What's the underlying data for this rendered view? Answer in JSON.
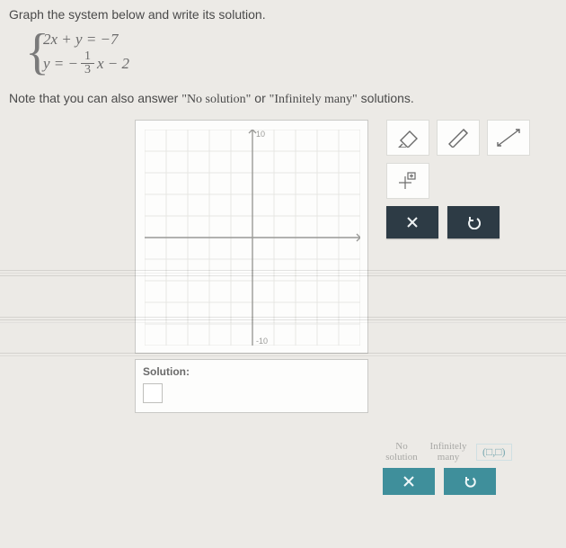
{
  "instruction": "Graph the system below and write its solution.",
  "system": {
    "eq1": "2x + y = −7",
    "eq2_lhs": "y = −",
    "eq2_frac_top": "1",
    "eq2_frac_bot": "3",
    "eq2_rhs": "x − 2"
  },
  "note_prefix": "Note that you can also answer ",
  "note_q1": "\"No solution\"",
  "note_mid": " or ",
  "note_q2": "\"Infinitely many\"",
  "note_suffix": " solutions.",
  "graph": {
    "xlim": [
      -10,
      10
    ],
    "ylim": [
      -10,
      10
    ],
    "tick": 2,
    "top_label": "10",
    "bottom_label": "-10",
    "grid_color": "#e6e6e3",
    "axis_color": "#9a9a97",
    "bg": "#fdfdfc"
  },
  "solution": {
    "label": "Solution:",
    "value": ""
  },
  "choices": {
    "no_solution": "No\nsolution",
    "inf_many": "Infinitely\nmany",
    "point_template": "(□,□)"
  },
  "colors": {
    "panel_border": "#c9c9c6",
    "dark_btn": "#2d3b45",
    "teal_btn": "#3f8f9b"
  }
}
